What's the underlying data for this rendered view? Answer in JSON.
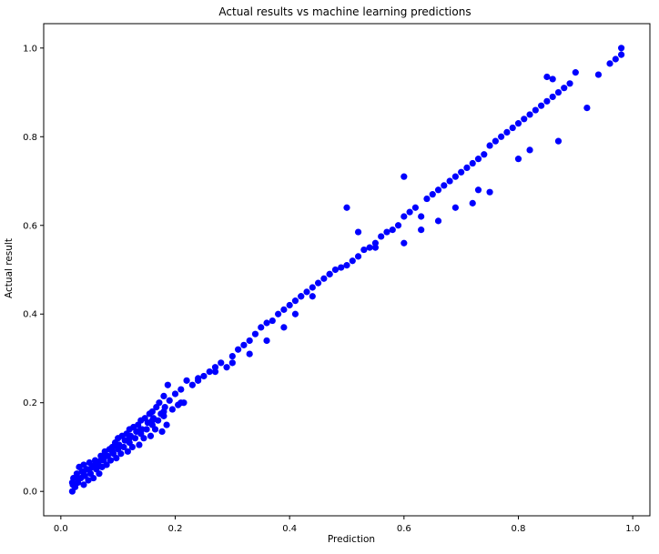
{
  "chart_data": {
    "type": "scatter",
    "title": "Actual results vs machine learning predictions",
    "xlabel": "Prediction",
    "ylabel": "Actual result",
    "xlim": [
      -0.03,
      1.03
    ],
    "ylim": [
      -0.055,
      1.055
    ],
    "xticks": [
      "0.0",
      "0.2",
      "0.4",
      "0.6",
      "0.8",
      "1.0"
    ],
    "yticks": [
      "0.0",
      "0.2",
      "0.4",
      "0.6",
      "0.8",
      "1.0"
    ],
    "xtick_values": [
      0.0,
      0.2,
      0.4,
      0.6,
      0.8,
      1.0
    ],
    "ytick_values": [
      0.0,
      0.2,
      0.4,
      0.6,
      0.8,
      1.0
    ],
    "grid": false,
    "legend": "none",
    "marker_color": "#0000ff",
    "series": [
      {
        "points": [
          [
            0.02,
            0.0
          ],
          [
            0.021,
            0.015
          ],
          [
            0.022,
            0.03
          ],
          [
            0.025,
            0.01
          ],
          [
            0.028,
            0.04
          ],
          [
            0.03,
            0.02
          ],
          [
            0.032,
            0.055
          ],
          [
            0.035,
            0.03
          ],
          [
            0.037,
            0.045
          ],
          [
            0.04,
            0.015
          ],
          [
            0.04,
            0.06
          ],
          [
            0.042,
            0.035
          ],
          [
            0.045,
            0.05
          ],
          [
            0.048,
            0.025
          ],
          [
            0.05,
            0.065
          ],
          [
            0.052,
            0.04
          ],
          [
            0.055,
            0.055
          ],
          [
            0.057,
            0.03
          ],
          [
            0.06,
            0.07
          ],
          [
            0.062,
            0.05
          ],
          [
            0.065,
            0.06
          ],
          [
            0.067,
            0.04
          ],
          [
            0.07,
            0.08
          ],
          [
            0.072,
            0.055
          ],
          [
            0.075,
            0.07
          ],
          [
            0.077,
            0.09
          ],
          [
            0.08,
            0.06
          ],
          [
            0.082,
            0.08
          ],
          [
            0.085,
            0.095
          ],
          [
            0.087,
            0.07
          ],
          [
            0.09,
            0.1
          ],
          [
            0.092,
            0.085
          ],
          [
            0.095,
            0.11
          ],
          [
            0.097,
            0.075
          ],
          [
            0.1,
            0.095
          ],
          [
            0.1,
            0.12
          ],
          [
            0.102,
            0.105
          ],
          [
            0.105,
            0.085
          ],
          [
            0.107,
            0.125
          ],
          [
            0.11,
            0.1
          ],
          [
            0.112,
            0.115
          ],
          [
            0.115,
            0.13
          ],
          [
            0.117,
            0.09
          ],
          [
            0.12,
            0.14
          ],
          [
            0.12,
            0.11
          ],
          [
            0.122,
            0.125
          ],
          [
            0.125,
            0.1
          ],
          [
            0.127,
            0.145
          ],
          [
            0.13,
            0.12
          ],
          [
            0.132,
            0.135
          ],
          [
            0.135,
            0.15
          ],
          [
            0.137,
            0.105
          ],
          [
            0.14,
            0.16
          ],
          [
            0.14,
            0.13
          ],
          [
            0.142,
            0.14
          ],
          [
            0.145,
            0.12
          ],
          [
            0.147,
            0.165
          ],
          [
            0.15,
            0.14
          ],
          [
            0.152,
            0.155
          ],
          [
            0.155,
            0.175
          ],
          [
            0.157,
            0.125
          ],
          [
            0.16,
            0.18
          ],
          [
            0.16,
            0.15
          ],
          [
            0.162,
            0.165
          ],
          [
            0.165,
            0.14
          ],
          [
            0.167,
            0.19
          ],
          [
            0.17,
            0.16
          ],
          [
            0.172,
            0.2
          ],
          [
            0.175,
            0.175
          ],
          [
            0.177,
            0.135
          ],
          [
            0.18,
            0.215
          ],
          [
            0.18,
            0.17
          ],
          [
            0.182,
            0.19
          ],
          [
            0.185,
            0.15
          ],
          [
            0.187,
            0.24
          ],
          [
            0.19,
            0.205
          ],
          [
            0.195,
            0.185
          ],
          [
            0.2,
            0.22
          ],
          [
            0.205,
            0.195
          ],
          [
            0.21,
            0.23
          ],
          [
            0.215,
            0.2
          ],
          [
            0.22,
            0.25
          ],
          [
            0.23,
            0.24
          ],
          [
            0.24,
            0.255
          ],
          [
            0.25,
            0.26
          ],
          [
            0.26,
            0.27
          ],
          [
            0.27,
            0.28
          ],
          [
            0.28,
            0.29
          ],
          [
            0.29,
            0.28
          ],
          [
            0.3,
            0.305
          ],
          [
            0.31,
            0.32
          ],
          [
            0.32,
            0.33
          ],
          [
            0.33,
            0.34
          ],
          [
            0.34,
            0.355
          ],
          [
            0.35,
            0.37
          ],
          [
            0.36,
            0.38
          ],
          [
            0.37,
            0.385
          ],
          [
            0.38,
            0.4
          ],
          [
            0.39,
            0.41
          ],
          [
            0.4,
            0.42
          ],
          [
            0.41,
            0.43
          ],
          [
            0.42,
            0.44
          ],
          [
            0.43,
            0.45
          ],
          [
            0.44,
            0.46
          ],
          [
            0.45,
            0.47
          ],
          [
            0.46,
            0.48
          ],
          [
            0.47,
            0.49
          ],
          [
            0.48,
            0.5
          ],
          [
            0.49,
            0.505
          ],
          [
            0.5,
            0.64
          ],
          [
            0.5,
            0.51
          ],
          [
            0.51,
            0.52
          ],
          [
            0.52,
            0.53
          ],
          [
            0.53,
            0.545
          ],
          [
            0.54,
            0.55
          ],
          [
            0.55,
            0.56
          ],
          [
            0.56,
            0.575
          ],
          [
            0.57,
            0.585
          ],
          [
            0.58,
            0.59
          ],
          [
            0.59,
            0.6
          ],
          [
            0.6,
            0.62
          ],
          [
            0.6,
            0.71
          ],
          [
            0.61,
            0.63
          ],
          [
            0.62,
            0.64
          ],
          [
            0.63,
            0.62
          ],
          [
            0.64,
            0.66
          ],
          [
            0.65,
            0.67
          ],
          [
            0.66,
            0.68
          ],
          [
            0.67,
            0.69
          ],
          [
            0.68,
            0.7
          ],
          [
            0.69,
            0.71
          ],
          [
            0.7,
            0.72
          ],
          [
            0.71,
            0.73
          ],
          [
            0.72,
            0.74
          ],
          [
            0.73,
            0.75
          ],
          [
            0.74,
            0.76
          ],
          [
            0.75,
            0.78
          ],
          [
            0.76,
            0.79
          ],
          [
            0.77,
            0.8
          ],
          [
            0.78,
            0.81
          ],
          [
            0.79,
            0.82
          ],
          [
            0.8,
            0.83
          ],
          [
            0.81,
            0.84
          ],
          [
            0.82,
            0.85
          ],
          [
            0.83,
            0.86
          ],
          [
            0.84,
            0.87
          ],
          [
            0.85,
            0.88
          ],
          [
            0.86,
            0.89
          ],
          [
            0.87,
            0.9
          ],
          [
            0.88,
            0.91
          ],
          [
            0.89,
            0.92
          ],
          [
            0.9,
            0.945
          ],
          [
            0.92,
            0.865
          ],
          [
            0.94,
            0.94
          ],
          [
            0.96,
            0.965
          ],
          [
            0.97,
            0.975
          ],
          [
            0.98,
            0.985
          ],
          [
            0.98,
            1.0
          ],
          [
            0.85,
            0.935
          ],
          [
            0.86,
            0.93
          ],
          [
            0.87,
            0.79
          ],
          [
            0.82,
            0.77
          ],
          [
            0.8,
            0.75
          ],
          [
            0.75,
            0.675
          ],
          [
            0.73,
            0.68
          ],
          [
            0.72,
            0.65
          ],
          [
            0.69,
            0.64
          ],
          [
            0.66,
            0.61
          ],
          [
            0.63,
            0.59
          ],
          [
            0.6,
            0.56
          ],
          [
            0.55,
            0.55
          ],
          [
            0.52,
            0.585
          ],
          [
            0.47,
            0.49
          ],
          [
            0.44,
            0.44
          ],
          [
            0.42,
            0.44
          ],
          [
            0.41,
            0.4
          ],
          [
            0.39,
            0.37
          ],
          [
            0.36,
            0.34
          ],
          [
            0.33,
            0.31
          ],
          [
            0.3,
            0.29
          ],
          [
            0.27,
            0.27
          ],
          [
            0.24,
            0.25
          ],
          [
            0.21,
            0.2
          ],
          [
            0.18,
            0.18
          ],
          [
            0.16,
            0.16
          ],
          [
            0.14,
            0.14
          ],
          [
            0.12,
            0.12
          ],
          [
            0.1,
            0.1
          ],
          [
            0.09,
            0.09
          ],
          [
            0.08,
            0.08
          ],
          [
            0.07,
            0.07
          ],
          [
            0.06,
            0.06
          ],
          [
            0.05,
            0.05
          ],
          [
            0.04,
            0.04
          ],
          [
            0.03,
            0.03
          ],
          [
            0.02,
            0.02
          ]
        ]
      }
    ]
  }
}
